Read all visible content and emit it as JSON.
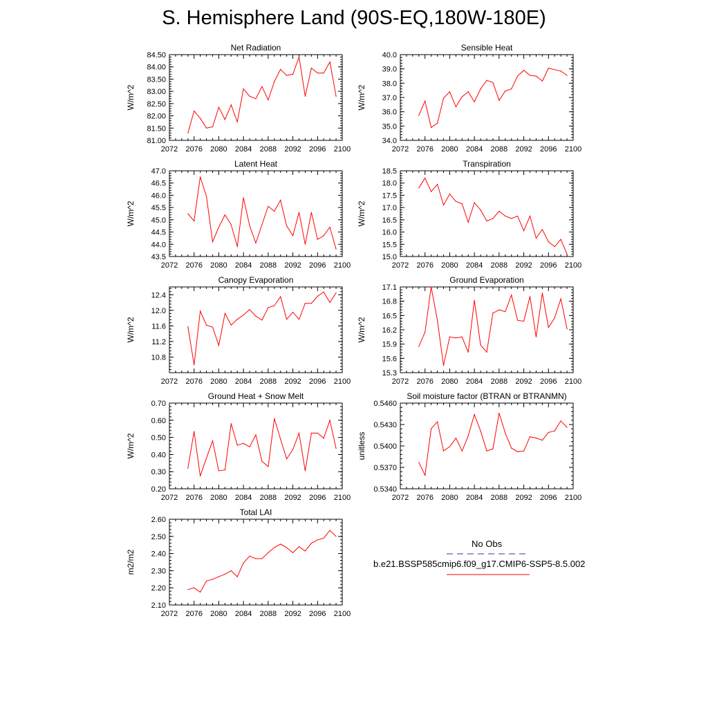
{
  "title": "S. Hemisphere Land (90S-EQ,180W-180E)",
  "colors": {
    "model_line": "#ff0000",
    "obs_line": "#3333aa",
    "axis": "#000000"
  },
  "legend": {
    "obs_label": "No Obs",
    "model_label": "b.e21.BSSP585cmip6.f09_g17.CMIP6-SSP5-8.5.002"
  },
  "chart_data": [
    {
      "type": "line",
      "title": "Net Radiation",
      "ylabel": "W/m^2",
      "xlim": [
        2072,
        2100
      ],
      "ylim": [
        81.0,
        84.5
      ],
      "xticks": [
        "2072",
        "2076",
        "2080",
        "2084",
        "2088",
        "2092",
        "2096",
        "2100"
      ],
      "yticks": [
        "81.00",
        "81.50",
        "82.00",
        "82.50",
        "83.00",
        "83.50",
        "84.00",
        "84.50"
      ],
      "x": [
        2075,
        2076,
        2077,
        2078,
        2079,
        2080,
        2081,
        2082,
        2083,
        2084,
        2085,
        2086,
        2087,
        2088,
        2089,
        2090,
        2091,
        2092,
        2093,
        2094,
        2095,
        2096,
        2097,
        2098,
        2099
      ],
      "values": [
        81.3,
        82.2,
        81.9,
        81.5,
        81.55,
        82.35,
        81.85,
        82.45,
        81.75,
        83.1,
        82.8,
        82.7,
        83.2,
        82.65,
        83.4,
        83.9,
        83.65,
        83.7,
        84.4,
        82.8,
        83.95,
        83.75,
        83.75,
        84.2,
        82.8
      ]
    },
    {
      "type": "line",
      "title": "Sensible Heat",
      "ylabel": "W/m^2",
      "xlim": [
        2072,
        2100
      ],
      "ylim": [
        34.0,
        40.0
      ],
      "xticks": [
        "2072",
        "2076",
        "2080",
        "2084",
        "2088",
        "2092",
        "2096",
        "2100"
      ],
      "yticks": [
        "34.0",
        "35.0",
        "36.0",
        "37.0",
        "38.0",
        "39.0",
        "40.0"
      ],
      "x": [
        2075,
        2076,
        2077,
        2078,
        2079,
        2080,
        2081,
        2082,
        2083,
        2084,
        2085,
        2086,
        2087,
        2088,
        2089,
        2090,
        2091,
        2092,
        2093,
        2094,
        2095,
        2096,
        2097,
        2098,
        2099
      ],
      "values": [
        35.75,
        36.75,
        34.9,
        35.2,
        36.95,
        37.4,
        36.35,
        37.05,
        37.4,
        36.7,
        37.6,
        38.2,
        38.05,
        36.8,
        37.45,
        37.6,
        38.5,
        38.9,
        38.55,
        38.5,
        38.15,
        39.05,
        38.95,
        38.85,
        38.55
      ]
    },
    {
      "type": "line",
      "title": "Latent Heat",
      "ylabel": "W/m^2",
      "xlim": [
        2072,
        2100
      ],
      "ylim": [
        43.5,
        47.0
      ],
      "xticks": [
        "2072",
        "2076",
        "2080",
        "2084",
        "2088",
        "2092",
        "2096",
        "2100"
      ],
      "yticks": [
        "43.5",
        "44.0",
        "44.5",
        "45.0",
        "45.5",
        "46.0",
        "46.5",
        "47.0"
      ],
      "x": [
        2075,
        2076,
        2077,
        2078,
        2079,
        2080,
        2081,
        2082,
        2083,
        2084,
        2085,
        2086,
        2087,
        2088,
        2089,
        2090,
        2091,
        2092,
        2093,
        2094,
        2095,
        2096,
        2097,
        2098,
        2099
      ],
      "values": [
        45.25,
        44.95,
        46.75,
        45.95,
        44.1,
        44.7,
        45.2,
        44.8,
        43.9,
        45.9,
        44.75,
        44.05,
        44.8,
        45.55,
        45.35,
        45.8,
        44.75,
        44.35,
        45.3,
        44.0,
        45.3,
        44.2,
        44.35,
        44.7,
        43.8
      ]
    },
    {
      "type": "line",
      "title": "Transpiration",
      "ylabel": "W/m^2",
      "xlim": [
        2072,
        2100
      ],
      "ylim": [
        15.0,
        18.5
      ],
      "xticks": [
        "2072",
        "2076",
        "2080",
        "2084",
        "2088",
        "2092",
        "2096",
        "2100"
      ],
      "yticks": [
        "15.0",
        "15.5",
        "16.0",
        "16.5",
        "17.0",
        "17.5",
        "18.0",
        "18.5"
      ],
      "x": [
        2075,
        2076,
        2077,
        2078,
        2079,
        2080,
        2081,
        2082,
        2083,
        2084,
        2085,
        2086,
        2087,
        2088,
        2089,
        2090,
        2091,
        2092,
        2093,
        2094,
        2095,
        2096,
        2097,
        2098,
        2099
      ],
      "values": [
        17.8,
        18.2,
        17.65,
        17.95,
        17.1,
        17.55,
        17.25,
        17.15,
        16.4,
        17.2,
        16.9,
        16.45,
        16.55,
        16.85,
        16.65,
        16.55,
        16.65,
        16.05,
        16.65,
        15.75,
        16.1,
        15.6,
        15.4,
        15.7,
        15.1
      ]
    },
    {
      "type": "line",
      "title": "Canopy Evaporation",
      "ylabel": "W/m^2",
      "xlim": [
        2072,
        2100
      ],
      "ylim": [
        10.4,
        12.6
      ],
      "xticks": [
        "2072",
        "2076",
        "2080",
        "2084",
        "2088",
        "2092",
        "2096",
        "2100"
      ],
      "yticks": [
        "10.8",
        "11.2",
        "11.6",
        "12.0",
        "12.4"
      ],
      "x": [
        2075,
        2076,
        2077,
        2078,
        2079,
        2080,
        2081,
        2082,
        2083,
        2084,
        2085,
        2086,
        2087,
        2088,
        2089,
        2090,
        2091,
        2092,
        2093,
        2094,
        2095,
        2096,
        2097,
        2098,
        2099
      ],
      "values": [
        11.58,
        10.6,
        11.98,
        11.62,
        11.57,
        11.1,
        11.92,
        11.62,
        11.77,
        11.88,
        12.02,
        11.85,
        11.75,
        12.07,
        12.12,
        12.35,
        11.77,
        11.95,
        11.77,
        12.18,
        12.18,
        12.36,
        12.47,
        12.2,
        12.45
      ]
    },
    {
      "type": "line",
      "title": "Ground Evaporation",
      "ylabel": "W/m^2",
      "xlim": [
        2072,
        2100
      ],
      "ylim": [
        15.3,
        17.1
      ],
      "xticks": [
        "2072",
        "2076",
        "2080",
        "2084",
        "2088",
        "2092",
        "2096",
        "2100"
      ],
      "yticks": [
        "15.3",
        "15.6",
        "15.9",
        "16.2",
        "16.5",
        "16.8",
        "17.1"
      ],
      "x": [
        2075,
        2076,
        2077,
        2078,
        2079,
        2080,
        2081,
        2082,
        2083,
        2084,
        2085,
        2086,
        2087,
        2088,
        2089,
        2090,
        2091,
        2092,
        2093,
        2094,
        2095,
        2096,
        2097,
        2098,
        2099
      ],
      "values": [
        15.85,
        16.15,
        17.1,
        16.4,
        15.45,
        16.05,
        16.03,
        16.05,
        15.73,
        16.82,
        15.88,
        15.73,
        16.55,
        16.62,
        16.58,
        16.93,
        16.4,
        16.38,
        16.9,
        16.05,
        16.97,
        16.25,
        16.45,
        16.85,
        16.22
      ]
    },
    {
      "type": "line",
      "title": "Ground Heat + Snow Melt",
      "ylabel": "W/m^2",
      "xlim": [
        2072,
        2100
      ],
      "ylim": [
        0.2,
        0.7
      ],
      "xticks": [
        "2072",
        "2076",
        "2080",
        "2084",
        "2088",
        "2092",
        "2096",
        "2100"
      ],
      "yticks": [
        "0.20",
        "0.30",
        "0.40",
        "0.50",
        "0.60",
        "0.70"
      ],
      "x": [
        2075,
        2076,
        2077,
        2078,
        2079,
        2080,
        2081,
        2082,
        2083,
        2084,
        2085,
        2086,
        2087,
        2088,
        2089,
        2090,
        2091,
        2092,
        2093,
        2094,
        2095,
        2096,
        2097,
        2098,
        2099
      ],
      "values": [
        0.32,
        0.535,
        0.275,
        0.38,
        0.48,
        0.305,
        0.31,
        0.58,
        0.455,
        0.465,
        0.445,
        0.515,
        0.36,
        0.33,
        0.61,
        0.49,
        0.375,
        0.43,
        0.525,
        0.305,
        0.525,
        0.525,
        0.495,
        0.6,
        0.435
      ]
    },
    {
      "type": "line",
      "title": "Soil moisture factor (BTRAN or BTRANMN)",
      "ylabel": "unitless",
      "xlim": [
        2072,
        2100
      ],
      "ylim": [
        0.534,
        0.546
      ],
      "xticks": [
        "2072",
        "2076",
        "2080",
        "2084",
        "2088",
        "2092",
        "2096",
        "2100"
      ],
      "yticks": [
        "0.5340",
        "0.5370",
        "0.5400",
        "0.5430",
        "0.5460"
      ],
      "x": [
        2075,
        2076,
        2077,
        2078,
        2079,
        2080,
        2081,
        2082,
        2083,
        2084,
        2085,
        2086,
        2087,
        2088,
        2089,
        2090,
        2091,
        2092,
        2093,
        2094,
        2095,
        2096,
        2097,
        2098,
        2099
      ],
      "values": [
        0.5377,
        0.5359,
        0.5424,
        0.5434,
        0.5393,
        0.5399,
        0.5411,
        0.5393,
        0.5414,
        0.5444,
        0.5421,
        0.5393,
        0.5396,
        0.5446,
        0.5418,
        0.5397,
        0.5392,
        0.5393,
        0.5413,
        0.5411,
        0.5408,
        0.5419,
        0.5421,
        0.5435,
        0.5426
      ]
    },
    {
      "type": "line",
      "title": "Total LAI",
      "ylabel": "m2/m2",
      "xlim": [
        2072,
        2100
      ],
      "ylim": [
        2.1,
        2.6
      ],
      "xticks": [
        "2072",
        "2076",
        "2080",
        "2084",
        "2088",
        "2092",
        "2096",
        "2100"
      ],
      "yticks": [
        "2.10",
        "2.20",
        "2.30",
        "2.40",
        "2.50",
        "2.60"
      ],
      "x": [
        2075,
        2076,
        2077,
        2078,
        2079,
        2080,
        2081,
        2082,
        2083,
        2084,
        2085,
        2086,
        2087,
        2088,
        2089,
        2090,
        2091,
        2092,
        2093,
        2094,
        2095,
        2096,
        2097,
        2098,
        2099
      ],
      "values": [
        2.19,
        2.2,
        2.175,
        2.24,
        2.25,
        2.265,
        2.28,
        2.3,
        2.265,
        2.345,
        2.385,
        2.37,
        2.37,
        2.405,
        2.435,
        2.455,
        2.435,
        2.405,
        2.44,
        2.415,
        2.46,
        2.48,
        2.49,
        2.535,
        2.5
      ]
    }
  ]
}
